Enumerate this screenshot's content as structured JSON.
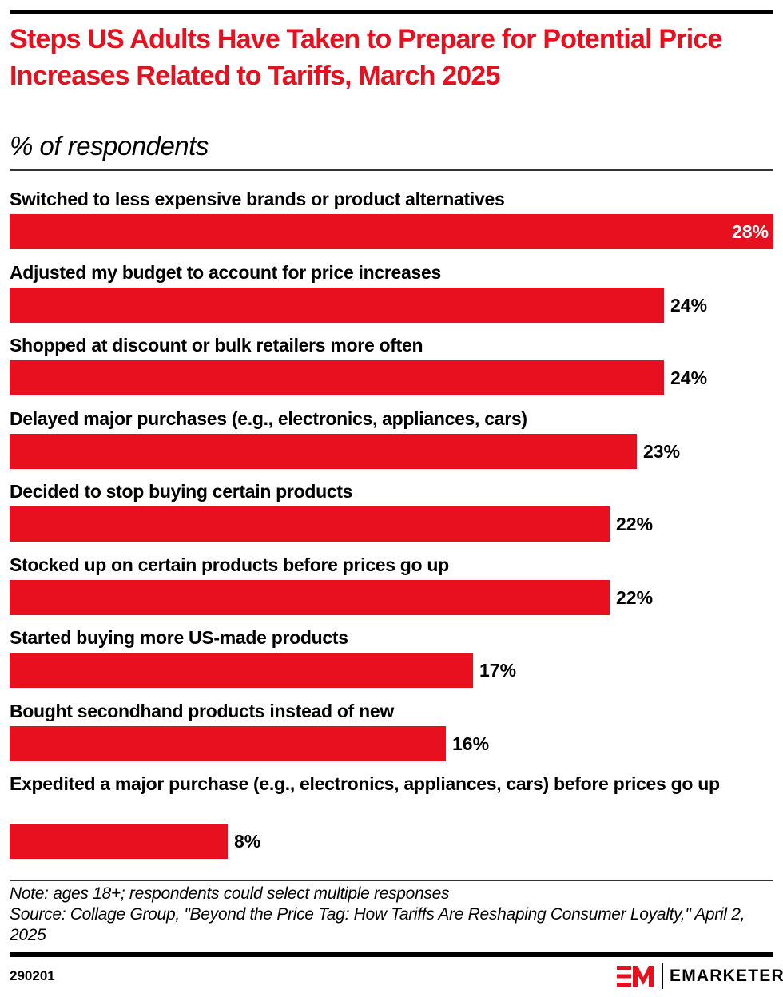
{
  "header": {
    "title": "Steps US Adults Have Taken to Prepare for Potential Price Increases Related to Tariffs, March 2025",
    "subtitle": "% of respondents"
  },
  "chart_data": {
    "type": "bar",
    "orientation": "horizontal",
    "title": "Steps US Adults Have Taken to Prepare for Potential Price Increases Related to Tariffs, March 2025",
    "subtitle": "% of respondents",
    "xlabel": "",
    "ylabel": "",
    "xlim": [
      0,
      28
    ],
    "grid": false,
    "categories": [
      "Switched to less expensive brands or product alternatives",
      "Adjusted my budget to account for price increases",
      "Shopped at discount or bulk retailers more often",
      "Delayed major purchases (e.g., electronics, appliances, cars)",
      "Decided to stop buying certain products",
      "Stocked up on certain products before prices go up",
      "Started buying more US-made products",
      "Bought secondhand products instead of new",
      "Expedited a major purchase (e.g., electronics, appliances, cars) before prices go up"
    ],
    "values": [
      28,
      24,
      24,
      23,
      22,
      22,
      17,
      16,
      8
    ],
    "value_labels": [
      "28%",
      "24%",
      "24%",
      "23%",
      "22%",
      "22%",
      "17%",
      "16%",
      "8%"
    ],
    "bar_color": "#e8101e"
  },
  "footer": {
    "note": "Note: ages 18+; respondents could select multiple responses",
    "source": "Source: Collage Group, \"Beyond the Price Tag: How Tariffs Are Reshaping Consumer Loyalty,\" April 2, 2025",
    "chart_id": "290201",
    "brand": "EMARKETER"
  },
  "colors": {
    "accent": "#e8101e",
    "text": "#000000"
  }
}
